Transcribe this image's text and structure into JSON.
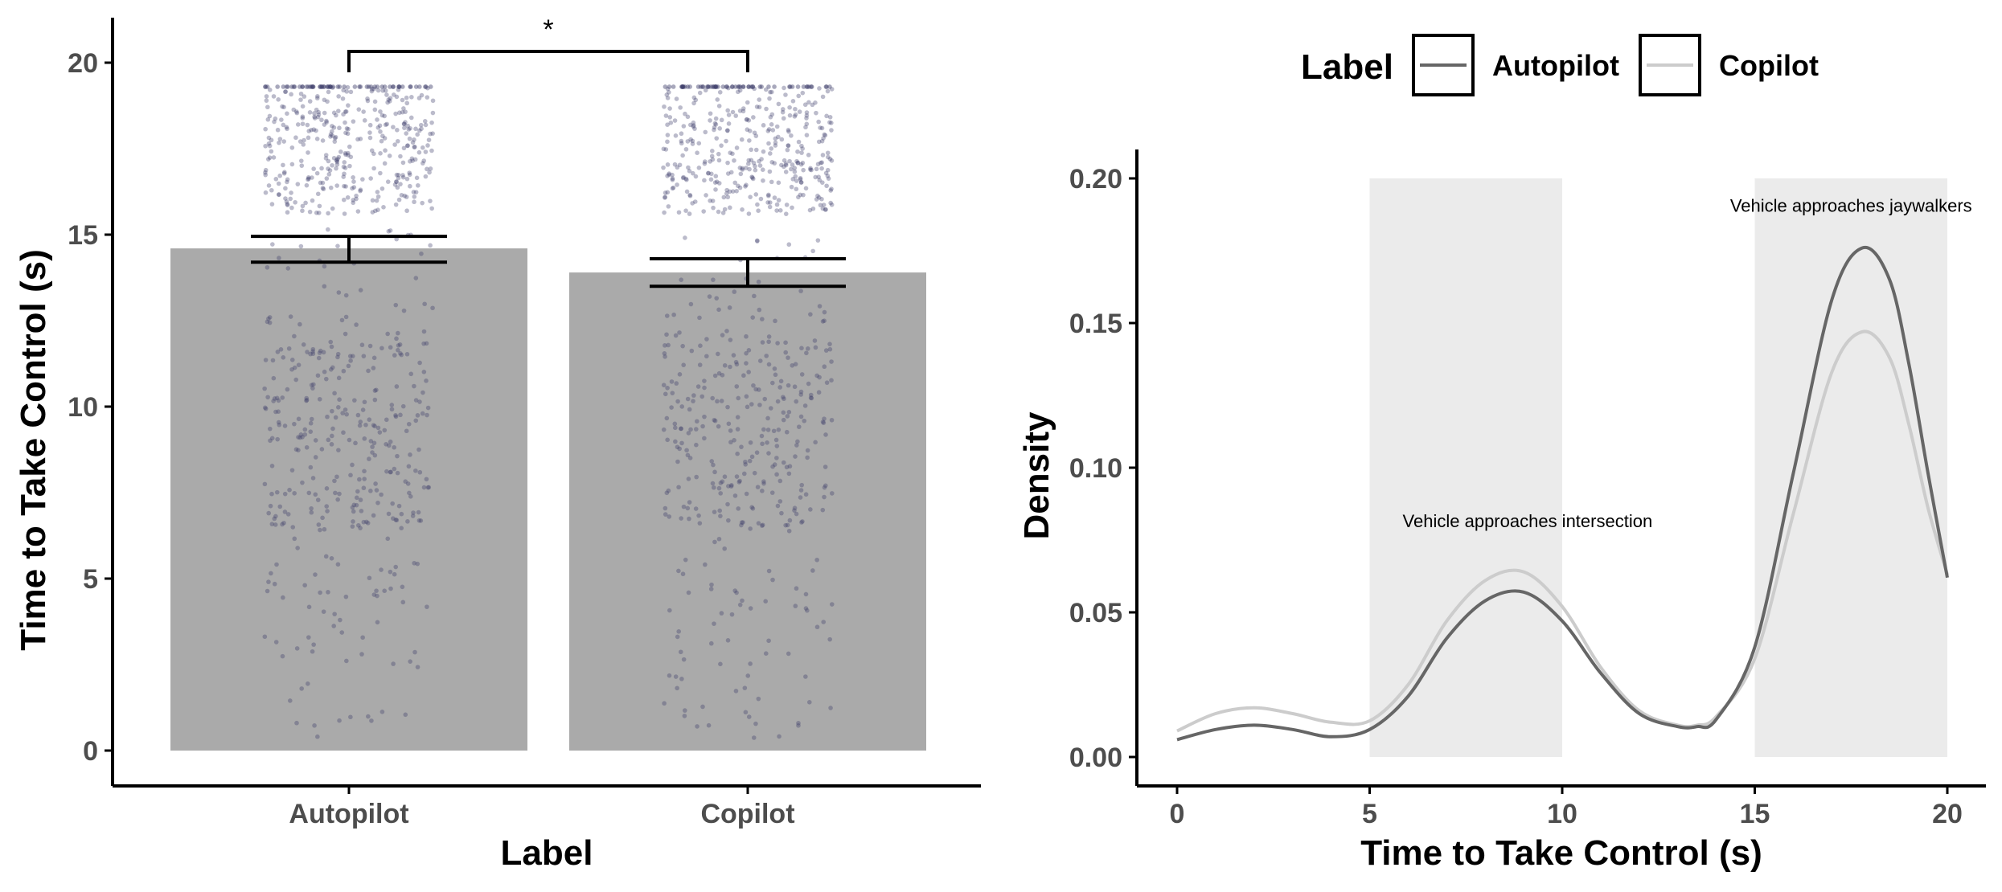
{
  "chart_data": [
    {
      "type": "bar",
      "categories": [
        "Autopilot",
        "Copilot"
      ],
      "values": [
        14.6,
        13.9
      ],
      "error_bars": [
        {
          "lower": 14.2,
          "upper": 14.95
        },
        {
          "lower": 13.5,
          "upper": 14.3
        }
      ],
      "points_overlay": "jitter",
      "bar_color": "#aaaaaa",
      "point_color": "#3d3d6b",
      "significance": "*",
      "xlabel": "Label",
      "ylabel": "Time to Take Control (s)",
      "ylim": [
        0,
        21
      ],
      "yticks": [
        0,
        5,
        10,
        15,
        20
      ]
    },
    {
      "type": "line",
      "xlabel": "Time to Take Control (s)",
      "ylabel": "Density",
      "xlim": [
        0,
        20
      ],
      "ylim": [
        0,
        0.21
      ],
      "xticks": [
        0,
        5,
        10,
        15,
        20
      ],
      "yticks": [
        "0.00",
        "0.05",
        "0.10",
        "0.15",
        "0.20"
      ],
      "legend_title": "Label",
      "legend_position": "top",
      "series": [
        {
          "name": "Autopilot",
          "color": "#666666",
          "x": [
            0,
            1,
            2,
            3,
            4,
            5,
            6,
            7,
            8,
            9,
            10,
            11,
            12,
            13,
            13.5,
            14,
            15,
            16,
            17,
            17.8,
            18.5,
            19,
            19.5,
            20
          ],
          "y": [
            0.006,
            0.0095,
            0.011,
            0.0095,
            0.007,
            0.0095,
            0.021,
            0.041,
            0.054,
            0.057,
            0.047,
            0.029,
            0.015,
            0.0105,
            0.0105,
            0.013,
            0.038,
            0.098,
            0.158,
            0.176,
            0.165,
            0.136,
            0.098,
            0.062
          ]
        },
        {
          "name": "Copilot",
          "color": "#cccccc",
          "x": [
            0,
            1,
            2,
            3,
            4,
            5,
            6,
            7,
            8,
            9,
            10,
            11,
            12,
            13,
            13.5,
            14,
            15,
            16,
            17,
            17.8,
            18.5,
            19,
            19.5,
            20
          ],
          "y": [
            0.009,
            0.015,
            0.017,
            0.015,
            0.012,
            0.0125,
            0.025,
            0.047,
            0.061,
            0.064,
            0.052,
            0.031,
            0.016,
            0.011,
            0.011,
            0.014,
            0.034,
            0.084,
            0.133,
            0.147,
            0.138,
            0.115,
            0.086,
            0.063
          ]
        }
      ],
      "shaded_regions": [
        {
          "x": [
            5,
            10
          ],
          "label": "Vehicle approaches intersection"
        },
        {
          "x": [
            15,
            20
          ],
          "label": "Vehicle approaches jaywalkers"
        }
      ],
      "shade_color": "#ebebeb"
    }
  ]
}
